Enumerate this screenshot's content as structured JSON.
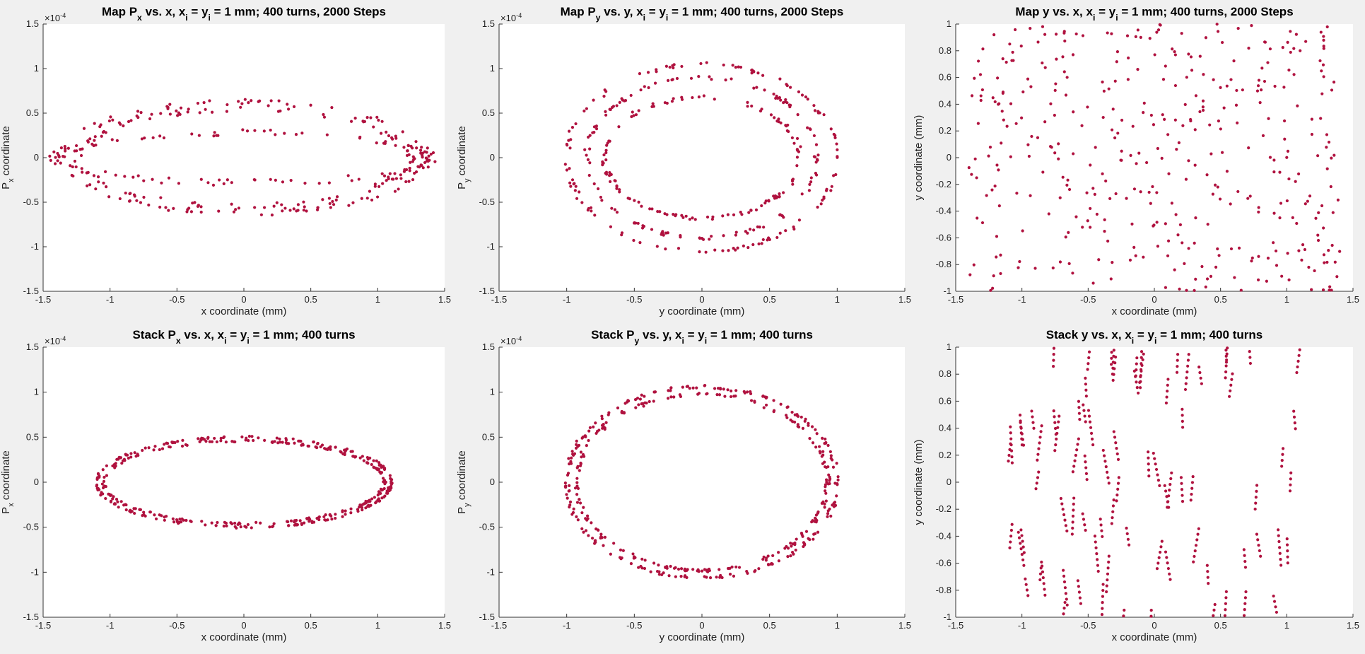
{
  "figure": {
    "background": "#f0f0f0",
    "marker_color": "#b0123f"
  },
  "chart_data": [
    {
      "type": "scatter",
      "title": [
        "Map P",
        {
          "sub": "x"
        },
        " vs. x, x",
        {
          "sub": "i"
        },
        " = y",
        {
          "sub": "i"
        },
        " = 1 mm; 400 turns, 2000 Steps"
      ],
      "xlabel": [
        "x coordinate (mm)"
      ],
      "ylabel": [
        "P",
        {
          "sub": "x"
        },
        " coordinate"
      ],
      "xlim": [
        -1.5,
        1.5
      ],
      "ylim": [
        -1.5,
        1.5
      ],
      "xticks": [
        "-1.5",
        "-1",
        "-0.5",
        "0",
        "0.5",
        "1",
        "1.5"
      ],
      "yticks": [
        "-1.5",
        "-1",
        "-0.5",
        "0",
        "0.5",
        "1",
        "1.5"
      ],
      "exponent": "×10",
      "exponent_power": "-4",
      "grid": false,
      "shape": "rings",
      "rings": [
        [
          1.35,
          0.62
        ],
        [
          1.25,
          0.55
        ],
        [
          1.42,
          0.28
        ]
      ],
      "points_per_ring": 110,
      "jitter": 0.035
    },
    {
      "type": "scatter",
      "title": [
        "Map P",
        {
          "sub": "y"
        },
        " vs. y, x",
        {
          "sub": "i"
        },
        " = y",
        {
          "sub": "i"
        },
        " = 1 mm; 400 turns, 2000 Steps"
      ],
      "xlabel": [
        "y coordinate (mm)"
      ],
      "ylabel": [
        "P",
        {
          "sub": "y"
        },
        " coordinate"
      ],
      "xlim": [
        -1.5,
        1.5
      ],
      "ylim": [
        -1.5,
        1.5
      ],
      "xticks": [
        "-1.5",
        "-1",
        "-0.5",
        "0",
        "0.5",
        "1",
        "1.5"
      ],
      "yticks": [
        "-1.5",
        "-1",
        "-0.5",
        "0",
        "0.5",
        "1",
        "1.5"
      ],
      "exponent": "×10",
      "exponent_power": "-4",
      "grid": false,
      "shape": "rings",
      "rings": [
        [
          1.0,
          1.05
        ],
        [
          0.85,
          0.9
        ],
        [
          0.72,
          0.68
        ]
      ],
      "points_per_ring": 120,
      "jitter": 0.02
    },
    {
      "type": "scatter",
      "title": [
        "Map y vs. x, x",
        {
          "sub": "i"
        },
        " = y",
        {
          "sub": "i"
        },
        " = 1 mm; 400 turns, 2000 Steps"
      ],
      "xlabel": [
        "x coordinate (mm)"
      ],
      "ylabel": [
        "y coordinate (mm)"
      ],
      "xlim": [
        -1.5,
        1.5
      ],
      "ylim": [
        -1,
        1
      ],
      "xticks": [
        "-1.5",
        "-1",
        "-0.5",
        "0",
        "0.5",
        "1",
        "1.5"
      ],
      "yticks": [
        "-1",
        "-0.8",
        "-0.6",
        "-0.4",
        "-0.2",
        "0",
        "0.2",
        "0.4",
        "0.6",
        "0.8",
        "1"
      ],
      "exponent": "",
      "exponent_power": "",
      "grid": false,
      "shape": "box-cloud",
      "box": [
        -1.4,
        1.4,
        -1.0,
        1.0
      ],
      "points_per_ring": 400,
      "jitter": 0.0
    },
    {
      "type": "scatter",
      "title": [
        "Stack P",
        {
          "sub": "x"
        },
        " vs. x, x",
        {
          "sub": "i"
        },
        " = y",
        {
          "sub": "i"
        },
        " = 1 mm; 400 turns"
      ],
      "xlabel": [
        "x coordinate (mm)"
      ],
      "ylabel": [
        "P",
        {
          "sub": "x"
        },
        " coordinate"
      ],
      "xlim": [
        -1.5,
        1.5
      ],
      "ylim": [
        -1.5,
        1.5
      ],
      "xticks": [
        "-1.5",
        "-1",
        "-0.5",
        "0",
        "0.5",
        "1",
        "1.5"
      ],
      "yticks": [
        "-1.5",
        "-1",
        "-0.5",
        "0",
        "0.5",
        "1",
        "1.5"
      ],
      "exponent": "×10",
      "exponent_power": "-4",
      "grid": false,
      "shape": "rings",
      "rings": [
        [
          1.1,
          0.5
        ],
        [
          1.05,
          0.46
        ]
      ],
      "points_per_ring": 200,
      "jitter": 0.012
    },
    {
      "type": "scatter",
      "title": [
        "Stack P",
        {
          "sub": "y"
        },
        " vs. y, x",
        {
          "sub": "i"
        },
        " = y",
        {
          "sub": "i"
        },
        " = 1 mm; 400 turns"
      ],
      "xlabel": [
        "y coordinate (mm)"
      ],
      "ylabel": [
        "P",
        {
          "sub": "y"
        },
        " coordinate"
      ],
      "xlim": [
        -1.5,
        1.5
      ],
      "ylim": [
        -1.5,
        1.5
      ],
      "xticks": [
        "-1.5",
        "-1",
        "-0.5",
        "0",
        "0.5",
        "1",
        "1.5"
      ],
      "yticks": [
        "-1.5",
        "-1",
        "-0.5",
        "0",
        "0.5",
        "1",
        "1.5"
      ],
      "exponent": "×10",
      "exponent_power": "-4",
      "grid": false,
      "shape": "rings",
      "rings": [
        [
          1.0,
          1.06
        ],
        [
          0.93,
          0.98
        ]
      ],
      "points_per_ring": 200,
      "jitter": 0.018
    },
    {
      "type": "scatter",
      "title": [
        "Stack y vs. x, x",
        {
          "sub": "i"
        },
        " = y",
        {
          "sub": "i"
        },
        " = 1 mm; 400 turns"
      ],
      "xlabel": [
        "x coordinate (mm)"
      ],
      "ylabel": [
        "y coordinate (mm)"
      ],
      "xlim": [
        -1.5,
        1.5
      ],
      "ylim": [
        -1,
        1
      ],
      "xticks": [
        "-1.5",
        "-1",
        "-0.5",
        "0",
        "0.5",
        "1",
        "1.5"
      ],
      "yticks": [
        "-1",
        "-0.8",
        "-0.6",
        "-0.4",
        "-0.2",
        "0",
        "0.2",
        "0.4",
        "0.6",
        "0.8",
        "1"
      ],
      "exponent": "",
      "exponent_power": "",
      "grid": false,
      "shape": "strokes",
      "box": [
        -1.1,
        1.1,
        -1.0,
        1.0
      ],
      "points_per_ring": 400,
      "jitter": 0.0
    }
  ]
}
